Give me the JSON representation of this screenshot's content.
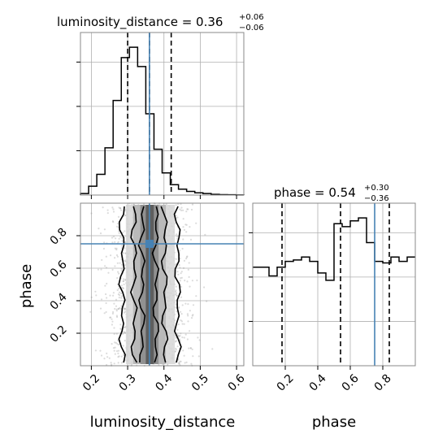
{
  "chart_data": {
    "type": "corner",
    "parameters": [
      "luminosity_distance",
      "phase"
    ],
    "xlabels": [
      "luminosity_distance",
      "phase"
    ],
    "ylabel": "phase",
    "titles": [
      {
        "main": "luminosity_distance = 0.36",
        "sup": "+0.06",
        "sub": "−0.06"
      },
      {
        "main": "phase = 0.54",
        "sup": "+0.30",
        "sub": "−0.36"
      }
    ],
    "truths": {
      "luminosity_distance": 0.36,
      "phase": 0.75
    },
    "truth_color": "#4682b4",
    "quantiles": {
      "luminosity_distance": [
        0.3,
        0.36,
        0.42
      ],
      "phase": [
        0.18,
        0.54,
        0.84
      ]
    },
    "ranges": {
      "luminosity_distance": [
        0.17,
        0.62
      ],
      "phase": [
        0.0,
        1.0
      ]
    },
    "ticks": {
      "luminosity_distance": [
        "0.2",
        "0.3",
        "0.4",
        "0.5",
        "0.6"
      ],
      "phase": [
        "0.2",
        "0.4",
        "0.6",
        "0.8"
      ]
    },
    "hist_luminosity_distance": {
      "edges": [
        0.17,
        0.1925,
        0.215,
        0.2375,
        0.26,
        0.2825,
        0.305,
        0.3275,
        0.35,
        0.3725,
        0.395,
        0.4175,
        0.44,
        0.4625,
        0.485,
        0.5075,
        0.53,
        0.5525,
        0.575,
        0.5975,
        0.62
      ],
      "counts": [
        0.01,
        0.06,
        0.14,
        0.32,
        0.64,
        0.93,
        1.0,
        0.87,
        0.55,
        0.31,
        0.15,
        0.07,
        0.04,
        0.025,
        0.015,
        0.01,
        0.005,
        0.003,
        0.002,
        0.001
      ]
    },
    "hist_phase": {
      "edges": [
        0.0,
        0.05,
        0.1,
        0.15,
        0.2,
        0.25,
        0.3,
        0.35,
        0.4,
        0.45,
        0.5,
        0.55,
        0.6,
        0.65,
        0.7,
        0.75,
        0.8,
        0.85,
        0.9,
        0.95,
        1.0
      ],
      "counts": [
        0.68,
        0.68,
        0.62,
        0.68,
        0.72,
        0.73,
        0.75,
        0.72,
        0.64,
        0.59,
        0.98,
        0.96,
        1.0,
        1.02,
        0.85,
        0.72,
        0.71,
        0.75,
        0.72,
        0.75
      ]
    },
    "grid": true
  }
}
